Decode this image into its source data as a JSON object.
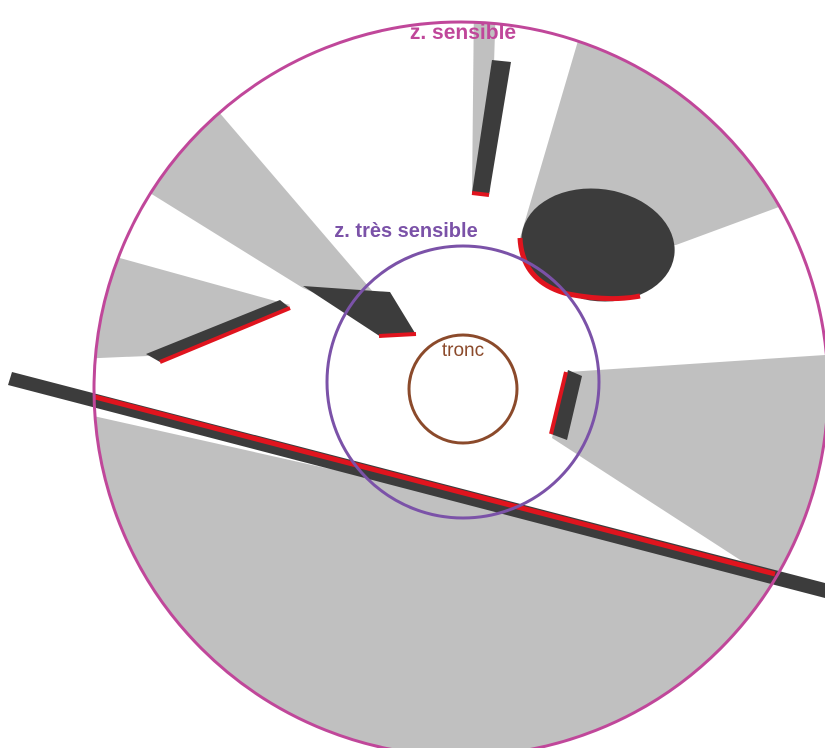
{
  "labels": {
    "outer_zone": "z. sensible",
    "inner_zone": "z. très sensible",
    "trunk": "tronc"
  },
  "colors": {
    "outer_zone": "#c0479a",
    "inner_zone": "#7b52a8",
    "trunk": "#8b4a2b",
    "shadow": "#c0c0c0",
    "obstacle": "#3c3c3c",
    "impact_edge": "#e0141e",
    "background": "#ffffff"
  }
}
